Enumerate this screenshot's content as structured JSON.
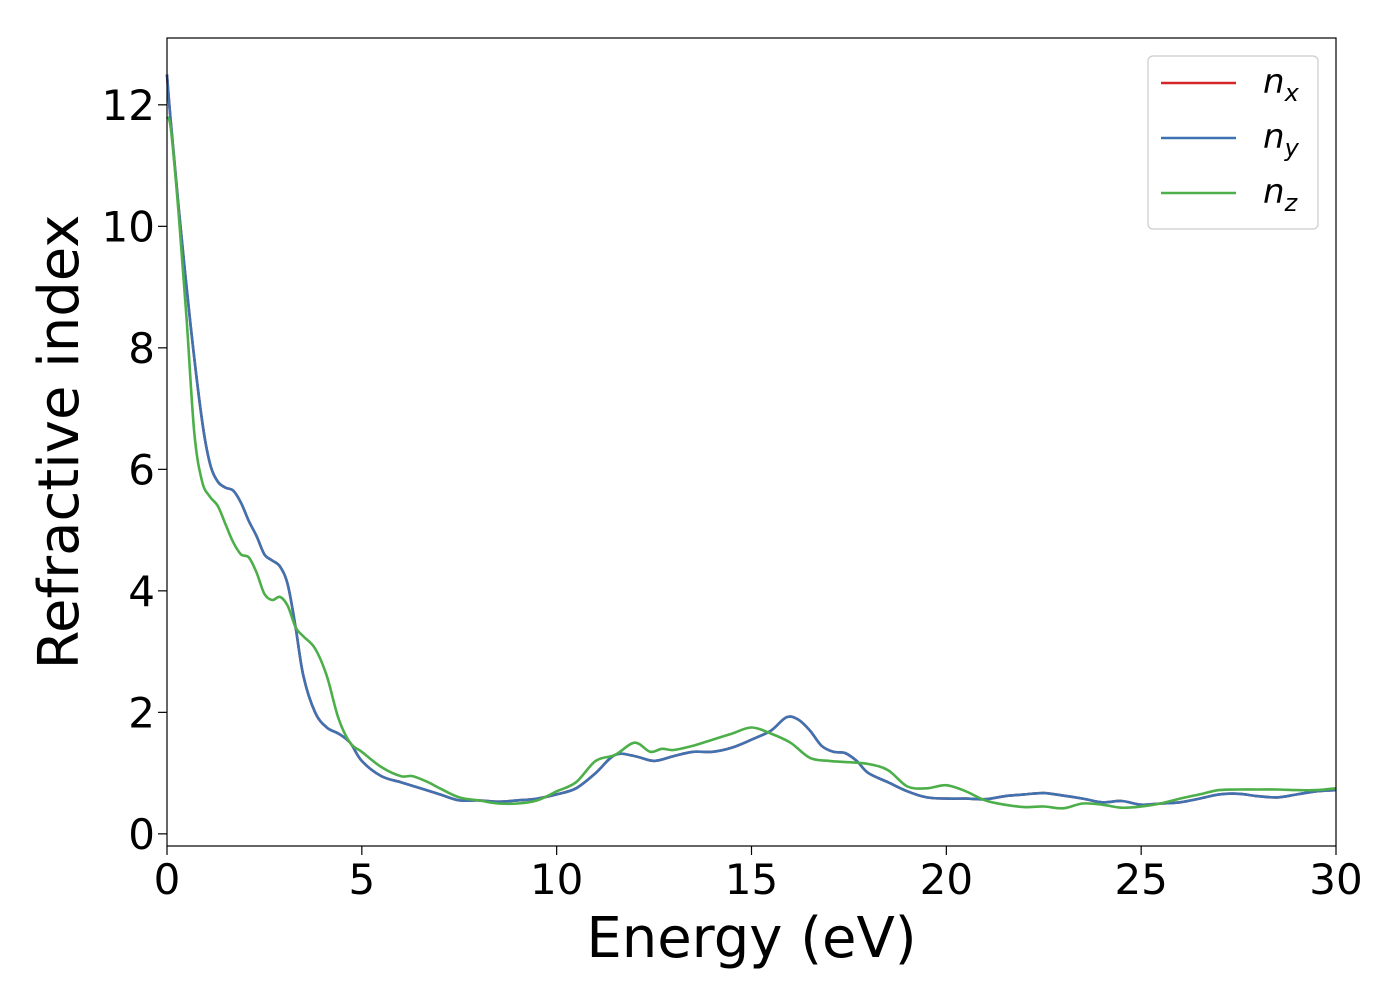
{
  "chart_data": {
    "type": "line",
    "title": "",
    "xlabel": "Energy (eV)",
    "ylabel": "Refractive index",
    "xlim": [
      0,
      30
    ],
    "ylim": [
      -0.2,
      13.1
    ],
    "xticks": [
      0,
      5,
      10,
      15,
      20,
      25,
      30
    ],
    "xtick_labels": [
      "0",
      "5",
      "10",
      "15",
      "20",
      "25",
      "30"
    ],
    "yticks": [
      0,
      2,
      4,
      6,
      8,
      10,
      12
    ],
    "ytick_labels": [
      "0",
      "2",
      "4",
      "6",
      "8",
      "10",
      "12"
    ],
    "grid": false,
    "legend_position": "top-right",
    "series": [
      {
        "name": "n",
        "subscript": "x",
        "color": "#d62728",
        "x": [
          0,
          0.1,
          0.3,
          0.6,
          0.9,
          1.1,
          1.3,
          1.5,
          1.7,
          1.9,
          2.1,
          2.3,
          2.5,
          2.7,
          2.9,
          3.1,
          3.3,
          3.5,
          3.8,
          4.1,
          4.4,
          4.7,
          5.0,
          5.5,
          6.0,
          6.5,
          7.0,
          7.5,
          8.0,
          8.5,
          9.0,
          9.5,
          10.0,
          10.5,
          11.0,
          11.5,
          12.0,
          12.5,
          13.0,
          13.5,
          14.0,
          14.5,
          15.0,
          15.5,
          15.9,
          16.2,
          16.5,
          16.8,
          17.1,
          17.4,
          17.7,
          18.0,
          18.5,
          19.0,
          19.5,
          20.0,
          20.5,
          21.0,
          21.5,
          22.0,
          22.5,
          23.0,
          23.5,
          24.0,
          24.5,
          25.0,
          25.5,
          26.0,
          26.5,
          27.0,
          27.5,
          28.0,
          28.5,
          29.0,
          29.5,
          30.0
        ],
        "y": [
          12.5,
          11.7,
          10.3,
          8.4,
          6.8,
          6.1,
          5.8,
          5.7,
          5.65,
          5.45,
          5.15,
          4.9,
          4.6,
          4.5,
          4.4,
          4.1,
          3.4,
          2.6,
          2.0,
          1.75,
          1.65,
          1.5,
          1.2,
          0.95,
          0.85,
          0.75,
          0.65,
          0.55,
          0.55,
          0.53,
          0.55,
          0.58,
          0.65,
          0.75,
          1.0,
          1.3,
          1.28,
          1.2,
          1.28,
          1.35,
          1.35,
          1.42,
          1.55,
          1.7,
          1.92,
          1.88,
          1.7,
          1.45,
          1.35,
          1.33,
          1.2,
          1.0,
          0.85,
          0.7,
          0.6,
          0.58,
          0.58,
          0.57,
          0.62,
          0.65,
          0.67,
          0.63,
          0.58,
          0.52,
          0.54,
          0.48,
          0.5,
          0.52,
          0.58,
          0.65,
          0.66,
          0.62,
          0.6,
          0.65,
          0.7,
          0.72
        ]
      },
      {
        "name": "n",
        "subscript": "y",
        "color": "#3f72b0",
        "x": [
          0,
          0.1,
          0.3,
          0.6,
          0.9,
          1.1,
          1.3,
          1.5,
          1.7,
          1.9,
          2.1,
          2.3,
          2.5,
          2.7,
          2.9,
          3.1,
          3.3,
          3.5,
          3.8,
          4.1,
          4.4,
          4.7,
          5.0,
          5.5,
          6.0,
          6.5,
          7.0,
          7.5,
          8.0,
          8.5,
          9.0,
          9.5,
          10.0,
          10.5,
          11.0,
          11.5,
          12.0,
          12.5,
          13.0,
          13.5,
          14.0,
          14.5,
          15.0,
          15.5,
          15.9,
          16.2,
          16.5,
          16.8,
          17.1,
          17.4,
          17.7,
          18.0,
          18.5,
          19.0,
          19.5,
          20.0,
          20.5,
          21.0,
          21.5,
          22.0,
          22.5,
          23.0,
          23.5,
          24.0,
          24.5,
          25.0,
          25.5,
          26.0,
          26.5,
          27.0,
          27.5,
          28.0,
          28.5,
          29.0,
          29.5,
          30.0
        ],
        "y": [
          12.5,
          11.7,
          10.3,
          8.4,
          6.8,
          6.1,
          5.8,
          5.7,
          5.65,
          5.45,
          5.15,
          4.9,
          4.6,
          4.5,
          4.4,
          4.1,
          3.4,
          2.6,
          2.0,
          1.75,
          1.65,
          1.5,
          1.2,
          0.95,
          0.85,
          0.75,
          0.65,
          0.55,
          0.55,
          0.53,
          0.55,
          0.58,
          0.65,
          0.75,
          1.0,
          1.3,
          1.28,
          1.2,
          1.28,
          1.35,
          1.35,
          1.42,
          1.55,
          1.7,
          1.92,
          1.88,
          1.7,
          1.45,
          1.35,
          1.33,
          1.2,
          1.0,
          0.85,
          0.7,
          0.6,
          0.58,
          0.58,
          0.57,
          0.62,
          0.65,
          0.67,
          0.63,
          0.58,
          0.52,
          0.54,
          0.48,
          0.5,
          0.52,
          0.58,
          0.65,
          0.66,
          0.62,
          0.6,
          0.65,
          0.7,
          0.72
        ]
      },
      {
        "name": "n",
        "subscript": "z",
        "color": "#4daf4a",
        "x": [
          0,
          0.1,
          0.3,
          0.5,
          0.7,
          0.9,
          1.1,
          1.3,
          1.5,
          1.7,
          1.9,
          2.1,
          2.3,
          2.5,
          2.7,
          2.9,
          3.1,
          3.3,
          3.5,
          3.8,
          4.1,
          4.4,
          4.7,
          5.0,
          5.5,
          6.0,
          6.3,
          6.7,
          7.0,
          7.5,
          8.0,
          8.5,
          9.0,
          9.5,
          10.0,
          10.5,
          11.0,
          11.5,
          12.0,
          12.4,
          12.7,
          13.0,
          13.5,
          14.0,
          14.5,
          15.0,
          15.5,
          16.0,
          16.5,
          17.0,
          17.5,
          18.0,
          18.5,
          19.0,
          19.5,
          20.0,
          20.5,
          21.0,
          21.5,
          22.0,
          22.5,
          23.0,
          23.5,
          24.0,
          24.5,
          25.0,
          25.5,
          26.0,
          26.5,
          27.0,
          27.5,
          28.0,
          28.5,
          29.0,
          29.5,
          30.0
        ],
        "y": [
          11.8,
          11.6,
          10.2,
          8.5,
          6.6,
          5.8,
          5.55,
          5.4,
          5.1,
          4.8,
          4.6,
          4.55,
          4.3,
          3.95,
          3.85,
          3.9,
          3.75,
          3.4,
          3.25,
          3.05,
          2.6,
          1.9,
          1.5,
          1.35,
          1.1,
          0.95,
          0.95,
          0.85,
          0.75,
          0.6,
          0.55,
          0.5,
          0.5,
          0.55,
          0.7,
          0.85,
          1.2,
          1.3,
          1.5,
          1.35,
          1.4,
          1.38,
          1.45,
          1.55,
          1.65,
          1.75,
          1.65,
          1.5,
          1.25,
          1.2,
          1.18,
          1.15,
          1.05,
          0.78,
          0.75,
          0.8,
          0.7,
          0.55,
          0.48,
          0.44,
          0.45,
          0.42,
          0.5,
          0.48,
          0.43,
          0.45,
          0.5,
          0.58,
          0.65,
          0.72,
          0.73,
          0.73,
          0.73,
          0.72,
          0.72,
          0.75
        ]
      }
    ]
  }
}
